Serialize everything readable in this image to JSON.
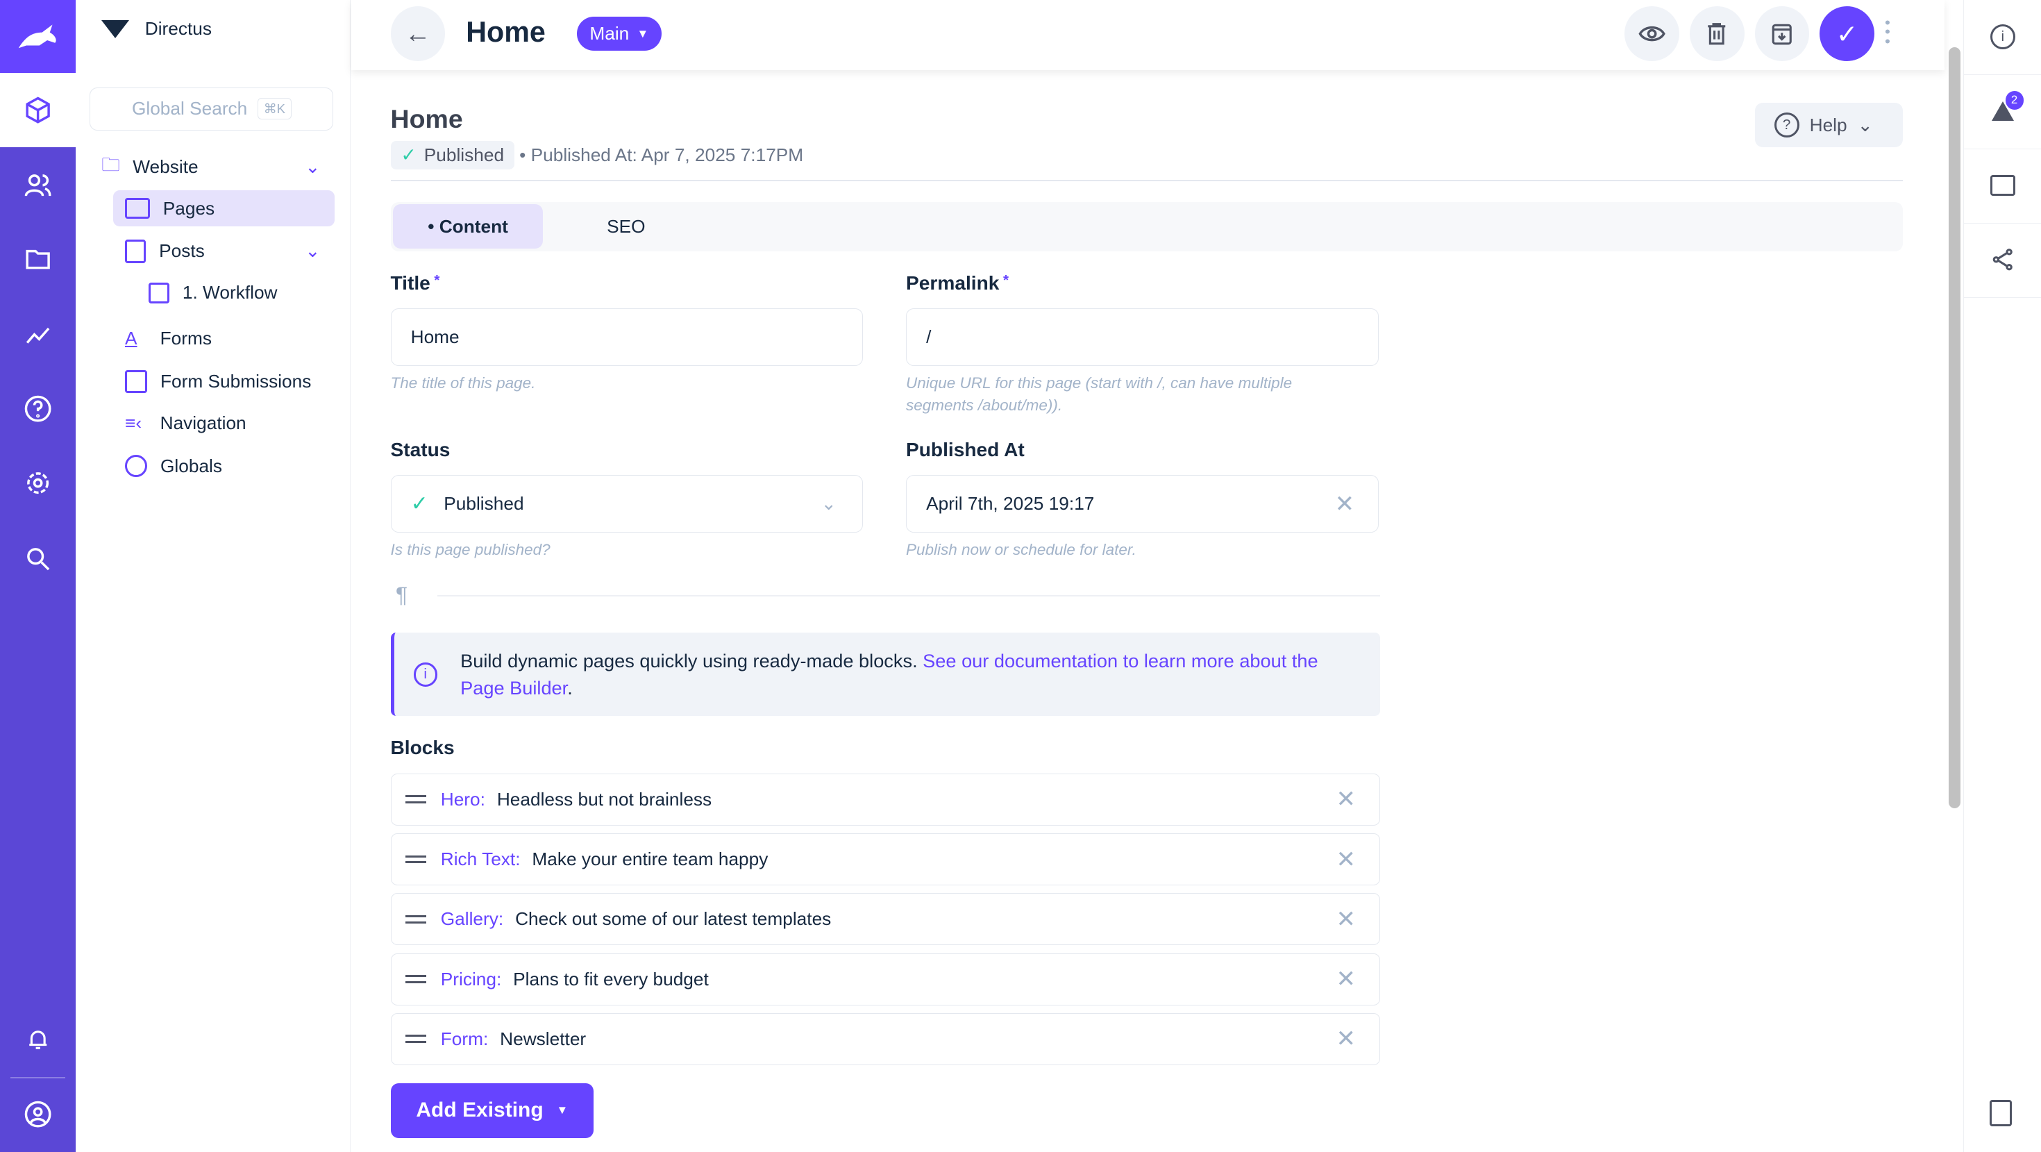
{
  "app": {
    "project_name": "Directus"
  },
  "nav": {
    "search_placeholder": "Global Search",
    "search_shortcut": "⌘K",
    "items": [
      {
        "label": "Website"
      },
      {
        "label": "Pages"
      },
      {
        "label": "Posts"
      },
      {
        "label": "1. Workflow"
      },
      {
        "label": "Forms"
      },
      {
        "label": "Form Submissions"
      },
      {
        "label": "Navigation"
      },
      {
        "label": "Globals"
      }
    ]
  },
  "header": {
    "title": "Home",
    "version": "Main"
  },
  "page": {
    "title": "Home",
    "status_badge": "Published",
    "published_meta": "• Published At: Apr 7, 2025 7:17PM",
    "help_label": "Help",
    "tabs": [
      {
        "label": "• Content"
      },
      {
        "label": "SEO"
      }
    ]
  },
  "fields": {
    "title": {
      "label": "Title",
      "value": "Home",
      "hint": "The title of this page."
    },
    "permalink": {
      "label": "Permalink",
      "value": "/",
      "hint": "Unique URL for this page (start with /, can have multiple segments /about/me))."
    },
    "status": {
      "label": "Status",
      "value": "Published",
      "hint": "Is this page published?"
    },
    "published_at": {
      "label": "Published At",
      "value": "April 7th, 2025 19:17",
      "hint": "Publish now or schedule for later."
    }
  },
  "notice": {
    "text": "Build dynamic pages quickly using ready-made blocks. ",
    "link": "See our documentation to learn more about the Page Builder",
    "end": "."
  },
  "blocks": {
    "label": "Blocks",
    "items": [
      {
        "type": "Hero:",
        "title": "Headless but not brainless"
      },
      {
        "type": "Rich Text:",
        "title": "Make your entire team happy"
      },
      {
        "type": "Gallery:",
        "title": "Check out some of our latest templates"
      },
      {
        "type": "Pricing:",
        "title": "Plans to fit every budget"
      },
      {
        "type": "Form:",
        "title": "Newsletter"
      }
    ],
    "add_existing": "Add Existing"
  },
  "sidebar": {
    "notification_count": "2"
  },
  "colors": {
    "accent": "#6644ff",
    "rail": "#5b47d6",
    "success": "#2ecda7"
  }
}
